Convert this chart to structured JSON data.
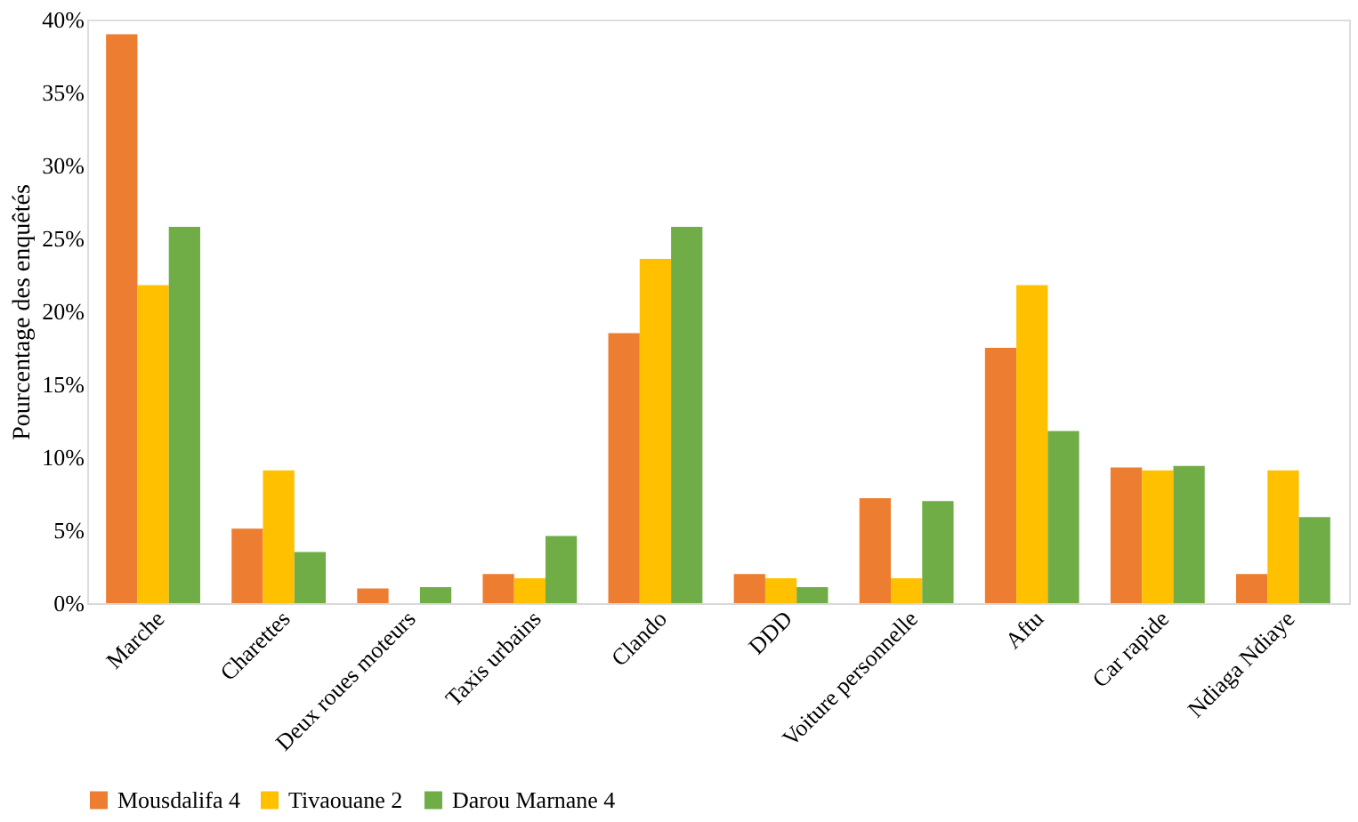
{
  "chart_data": {
    "type": "bar",
    "ylabel": "Pourcentage des enquêtés",
    "categories": [
      "Marche",
      "Charettes",
      "Deux roues moteurs",
      "Taxis urbains",
      "Clando",
      "DDD",
      "Voiture personnelle",
      "Aftu",
      "Car rapide",
      "Ndiaga Ndiaye"
    ],
    "series": [
      {
        "name": "Mousdalifa 4",
        "color": "#ed7d31",
        "values": [
          39.0,
          5.1,
          1.0,
          2.0,
          18.5,
          2.0,
          7.2,
          17.5,
          9.3,
          2.0
        ]
      },
      {
        "name": "Tivaouane 2",
        "color": "#ffc000",
        "values": [
          21.8,
          9.1,
          0,
          1.7,
          23.6,
          1.7,
          1.7,
          21.8,
          9.1,
          9.1
        ]
      },
      {
        "name": "Darou Marnane 4",
        "color": "#70ad47",
        "values": [
          25.8,
          3.5,
          1.1,
          4.6,
          25.8,
          1.1,
          7.0,
          11.8,
          9.4,
          5.9
        ]
      }
    ],
    "ylim": [
      0,
      40
    ],
    "yticks": [
      {
        "value": 0,
        "label": "0%"
      },
      {
        "value": 5,
        "label": "5%"
      },
      {
        "value": 10,
        "label": "10%"
      },
      {
        "value": 15,
        "label": "15%"
      },
      {
        "value": 20,
        "label": "20%"
      },
      {
        "value": 25,
        "label": "25%"
      },
      {
        "value": 30,
        "label": "30%"
      },
      {
        "value": 35,
        "label": "35%"
      },
      {
        "value": 40,
        "label": "40%"
      }
    ],
    "grid": false,
    "legend": "bottom"
  }
}
